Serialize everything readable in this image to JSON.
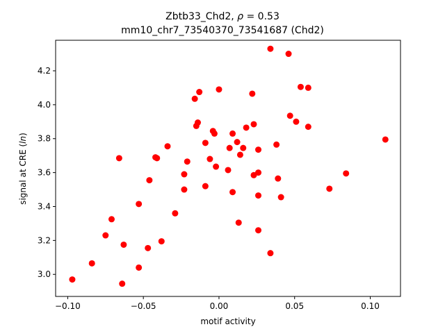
{
  "chart_data": {
    "type": "scatter",
    "title_line1_prefix": "Zbtb33_Chd2, ",
    "title_rho_symbol": "ρ",
    "title_rho_value": " = 0.53",
    "title_line2": "mm10_chr7_73540370_73541687 (Chd2)",
    "xlabel": "motif activity",
    "ylabel_prefix": "signal at CRE (",
    "ylabel_italic": "ln",
    "ylabel_suffix": ")",
    "xlim": [
      -0.108,
      0.12
    ],
    "ylim": [
      2.87,
      4.38
    ],
    "xticks": [
      -0.1,
      -0.05,
      0.0,
      0.05,
      0.1
    ],
    "xtick_labels": [
      "−0.10",
      "−0.05",
      "0.00",
      "0.05",
      "0.10"
    ],
    "yticks": [
      3.0,
      3.2,
      3.4,
      3.6,
      3.8,
      4.0,
      4.2
    ],
    "ytick_labels": [
      "3.0",
      "3.2",
      "3.4",
      "3.6",
      "3.8",
      "4.0",
      "4.2"
    ],
    "marker_color": "#ff0000",
    "grid": false,
    "points": [
      {
        "x": -0.097,
        "y": 2.97
      },
      {
        "x": -0.084,
        "y": 3.065
      },
      {
        "x": -0.075,
        "y": 3.23
      },
      {
        "x": -0.071,
        "y": 3.325
      },
      {
        "x": -0.066,
        "y": 3.685
      },
      {
        "x": -0.064,
        "y": 2.945
      },
      {
        "x": -0.063,
        "y": 3.175
      },
      {
        "x": -0.053,
        "y": 3.415
      },
      {
        "x": -0.053,
        "y": 3.04
      },
      {
        "x": -0.047,
        "y": 3.155
      },
      {
        "x": -0.046,
        "y": 3.555
      },
      {
        "x": -0.042,
        "y": 3.69
      },
      {
        "x": -0.041,
        "y": 3.685
      },
      {
        "x": -0.038,
        "y": 3.195
      },
      {
        "x": -0.034,
        "y": 3.755
      },
      {
        "x": -0.029,
        "y": 3.36
      },
      {
        "x": -0.023,
        "y": 3.5
      },
      {
        "x": -0.023,
        "y": 3.59
      },
      {
        "x": -0.021,
        "y": 3.665
      },
      {
        "x": -0.016,
        "y": 4.035
      },
      {
        "x": -0.015,
        "y": 3.875
      },
      {
        "x": -0.014,
        "y": 3.895
      },
      {
        "x": -0.013,
        "y": 4.075
      },
      {
        "x": -0.009,
        "y": 3.775
      },
      {
        "x": -0.009,
        "y": 3.52
      },
      {
        "x": -0.006,
        "y": 3.68
      },
      {
        "x": -0.004,
        "y": 3.845
      },
      {
        "x": -0.003,
        "y": 3.83
      },
      {
        "x": -0.002,
        "y": 3.635
      },
      {
        "x": 0.0,
        "y": 4.09
      },
      {
        "x": 0.006,
        "y": 3.615
      },
      {
        "x": 0.007,
        "y": 3.745
      },
      {
        "x": 0.009,
        "y": 3.83
      },
      {
        "x": 0.009,
        "y": 3.485
      },
      {
        "x": 0.012,
        "y": 3.78
      },
      {
        "x": 0.013,
        "y": 3.305
      },
      {
        "x": 0.014,
        "y": 3.705
      },
      {
        "x": 0.016,
        "y": 3.745
      },
      {
        "x": 0.018,
        "y": 3.865
      },
      {
        "x": 0.022,
        "y": 4.065
      },
      {
        "x": 0.023,
        "y": 3.885
      },
      {
        "x": 0.023,
        "y": 3.585
      },
      {
        "x": 0.026,
        "y": 3.6
      },
      {
        "x": 0.026,
        "y": 3.735
      },
      {
        "x": 0.026,
        "y": 3.465
      },
      {
        "x": 0.026,
        "y": 3.26
      },
      {
        "x": 0.034,
        "y": 4.33
      },
      {
        "x": 0.034,
        "y": 3.125
      },
      {
        "x": 0.038,
        "y": 3.765
      },
      {
        "x": 0.039,
        "y": 3.565
      },
      {
        "x": 0.041,
        "y": 3.455
      },
      {
        "x": 0.046,
        "y": 4.3
      },
      {
        "x": 0.047,
        "y": 3.935
      },
      {
        "x": 0.051,
        "y": 3.9
      },
      {
        "x": 0.054,
        "y": 4.105
      },
      {
        "x": 0.059,
        "y": 4.1
      },
      {
        "x": 0.059,
        "y": 3.87
      },
      {
        "x": 0.073,
        "y": 3.505
      },
      {
        "x": 0.084,
        "y": 3.595
      },
      {
        "x": 0.11,
        "y": 3.795
      }
    ]
  }
}
